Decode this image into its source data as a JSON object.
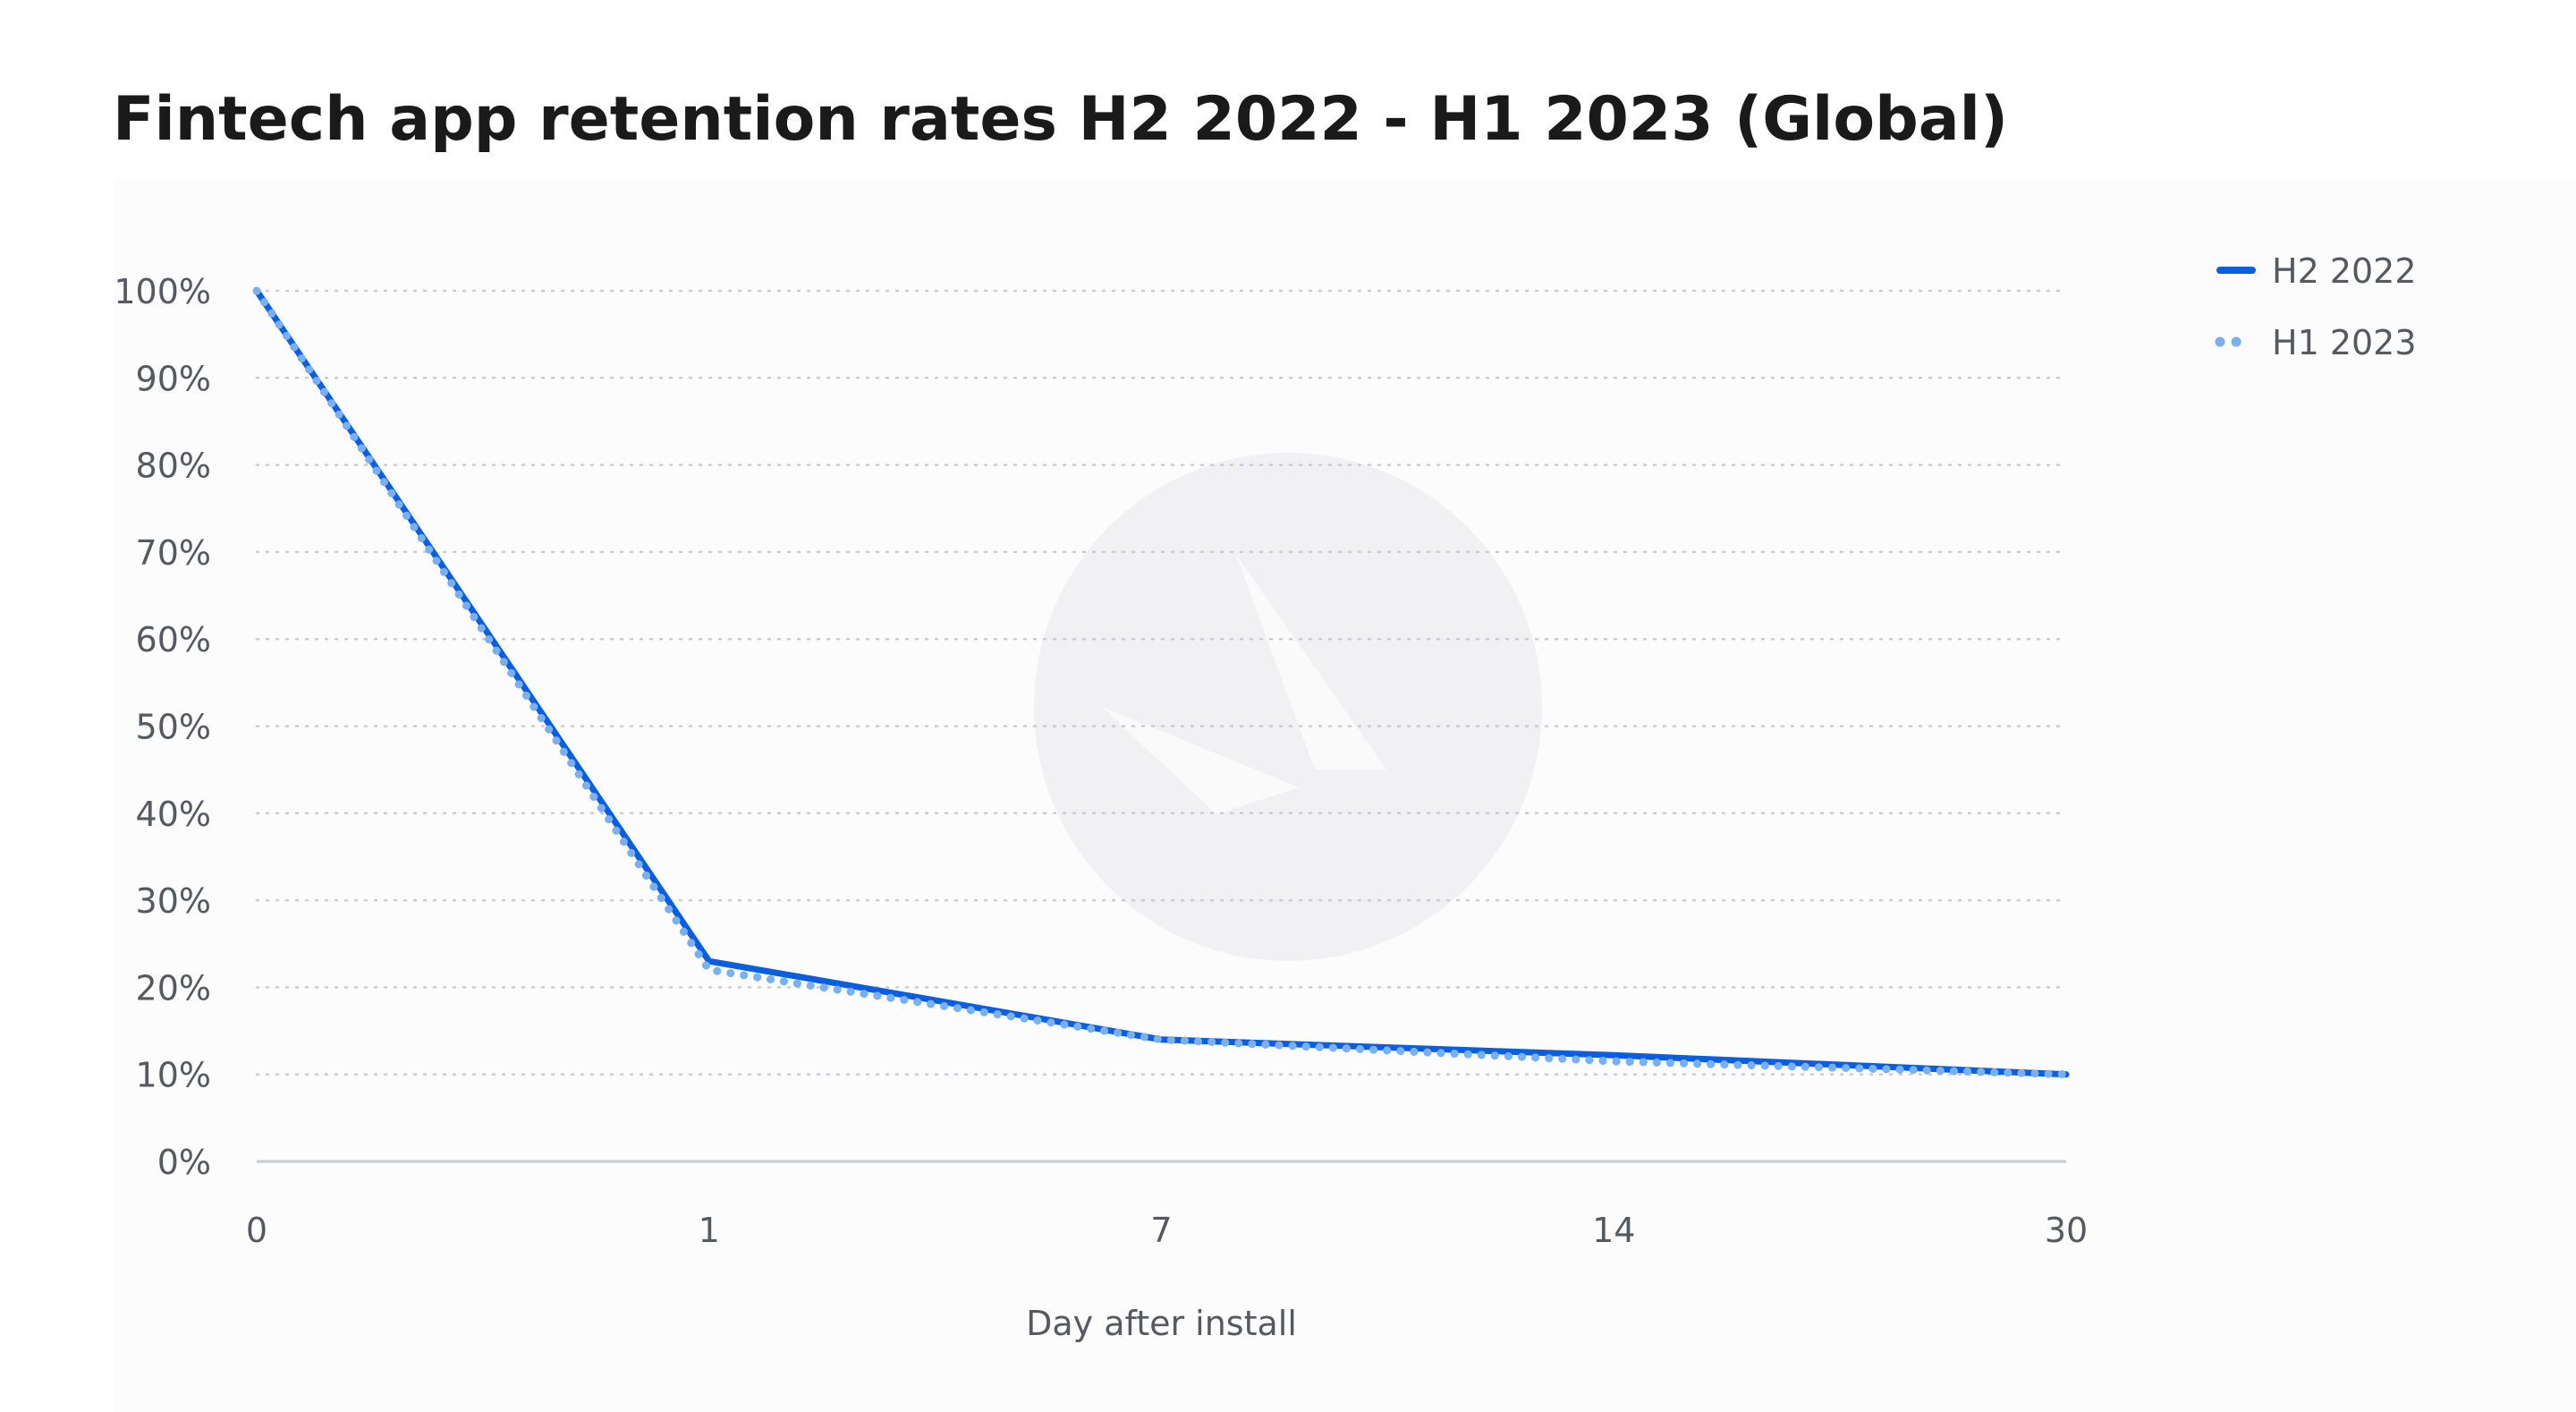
{
  "chart_data": {
    "type": "line",
    "title": "Fintech app retention rates H2 2022 - H1 2023 (Global)",
    "xlabel": "Day after install",
    "ylabel": "",
    "categories": [
      "0",
      "1",
      "7",
      "14",
      "30"
    ],
    "y_ticks": [
      "0%",
      "10%",
      "20%",
      "30%",
      "40%",
      "50%",
      "60%",
      "70%",
      "80%",
      "90%",
      "100%"
    ],
    "ylim": [
      0,
      100
    ],
    "grid": "horizontal dotted",
    "legend_position": "top-right",
    "series": [
      {
        "name": "H2 2022",
        "values": [
          100,
          23,
          14,
          12.2,
          10
        ],
        "style": "solid",
        "color": "#0a5ee0"
      },
      {
        "name": "H1 2023",
        "values": [
          100,
          22,
          14,
          11.5,
          10
        ],
        "style": "dotted",
        "color": "#7ab0ef"
      }
    ],
    "colors": {
      "grid": "#c9ccd1",
      "axis": "#c9ccd1",
      "watermark": "#f1f1f3",
      "plot_background": "#fcfcfc"
    },
    "watermark_icon": "brand-logo-icon"
  }
}
